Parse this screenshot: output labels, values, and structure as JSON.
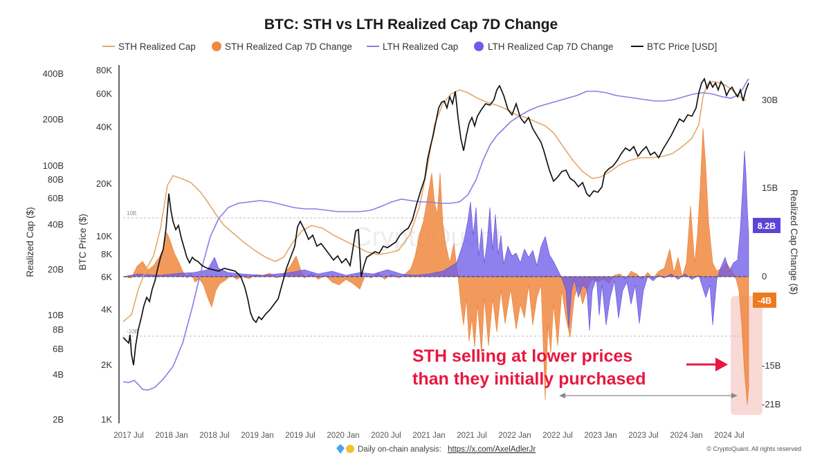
{
  "chart_data": {
    "type": "line",
    "title": "BTC: STH vs LTH Realized Cap 7D Change",
    "legend": [
      {
        "label": "STH Realized Cap",
        "kind": "line",
        "color": "#e2a86b"
      },
      {
        "label": "STH Realized Cap 7D Change",
        "kind": "area",
        "color": "#f0883f"
      },
      {
        "label": "LTH Realized  Cap",
        "kind": "line",
        "color": "#8b7be6"
      },
      {
        "label": "LTH Realized  Cap 7D Change",
        "kind": "area",
        "color": "#6f5ce8"
      },
      {
        "label": "BTC Price [USD]",
        "kind": "line",
        "color": "#111111"
      }
    ],
    "left_axis": {
      "title": "Realized Cap ($)",
      "scale": "log",
      "ticks": [
        "400B",
        "200B",
        "100B",
        "80B",
        "60B",
        "40B",
        "20B",
        "10B",
        "8B",
        "6B",
        "4B",
        "2B"
      ]
    },
    "price_axis": {
      "title": "BTC Price ($)",
      "scale": "log",
      "ticks": [
        "80K",
        "60K",
        "40K",
        "20K",
        "10K",
        "8K",
        "6K",
        "4K",
        "2K",
        "1K"
      ]
    },
    "right_axis": {
      "title": "Realized Cap Change ($)",
      "ticks": [
        "30B",
        "15B",
        "0",
        "-15B",
        "-21B"
      ]
    },
    "x_ticks": [
      "2017 Jul",
      "2018 Jan",
      "2018 Jul",
      "2019 Jan",
      "2019 Jul",
      "2020 Jan",
      "2020 Jul",
      "2021 Jan",
      "2021 Jul",
      "2022 Jan",
      "2022 Jul",
      "2023 Jan",
      "2023 Jul",
      "2024 Jan",
      "2024 Jul"
    ],
    "reference_lines": {
      "upper": "10B",
      "lower": "-10B"
    },
    "badges": [
      {
        "label": "8.2B",
        "color": "#5b45d6"
      },
      {
        "label": "-4B",
        "color": "#ee7a1e"
      }
    ],
    "annotation": {
      "line1": "STH selling at lower prices",
      "line2": "than they initially purchased",
      "color": "#e8173f"
    },
    "watermark": "CryptoQuant",
    "price_series": {
      "name": "BTC Price [USD]",
      "x": [
        "2017-06",
        "2017-08",
        "2017-10",
        "2017-12",
        "2018-02",
        "2018-04",
        "2018-06",
        "2018-08",
        "2018-10",
        "2018-12",
        "2019-02",
        "2019-04",
        "2019-06",
        "2019-08",
        "2019-10",
        "2019-12",
        "2020-02",
        "2020-03",
        "2020-05",
        "2020-07",
        "2020-09",
        "2020-11",
        "2021-01",
        "2021-03",
        "2021-04",
        "2021-06",
        "2021-07",
        "2021-09",
        "2021-11",
        "2022-01",
        "2022-03",
        "2022-05",
        "2022-06",
        "2022-08",
        "2022-10",
        "2022-11",
        "2023-01",
        "2023-03",
        "2023-05",
        "2023-07",
        "2023-09",
        "2023-11",
        "2024-01",
        "2024-03",
        "2024-05",
        "2024-07",
        "2024-09"
      ],
      "values": [
        2600,
        4300,
        5800,
        17000,
        10000,
        8000,
        6500,
        6800,
        6400,
        3500,
        3600,
        5200,
        10500,
        10500,
        8500,
        7200,
        9800,
        5500,
        9000,
        9500,
        11000,
        17000,
        35000,
        58000,
        60000,
        34000,
        32000,
        47000,
        64000,
        38000,
        45000,
        31000,
        20000,
        23000,
        19500,
        16500,
        20000,
        27000,
        27000,
        30000,
        26000,
        37000,
        42000,
        70000,
        66000,
        62000,
        63000
      ]
    }
  }
}
